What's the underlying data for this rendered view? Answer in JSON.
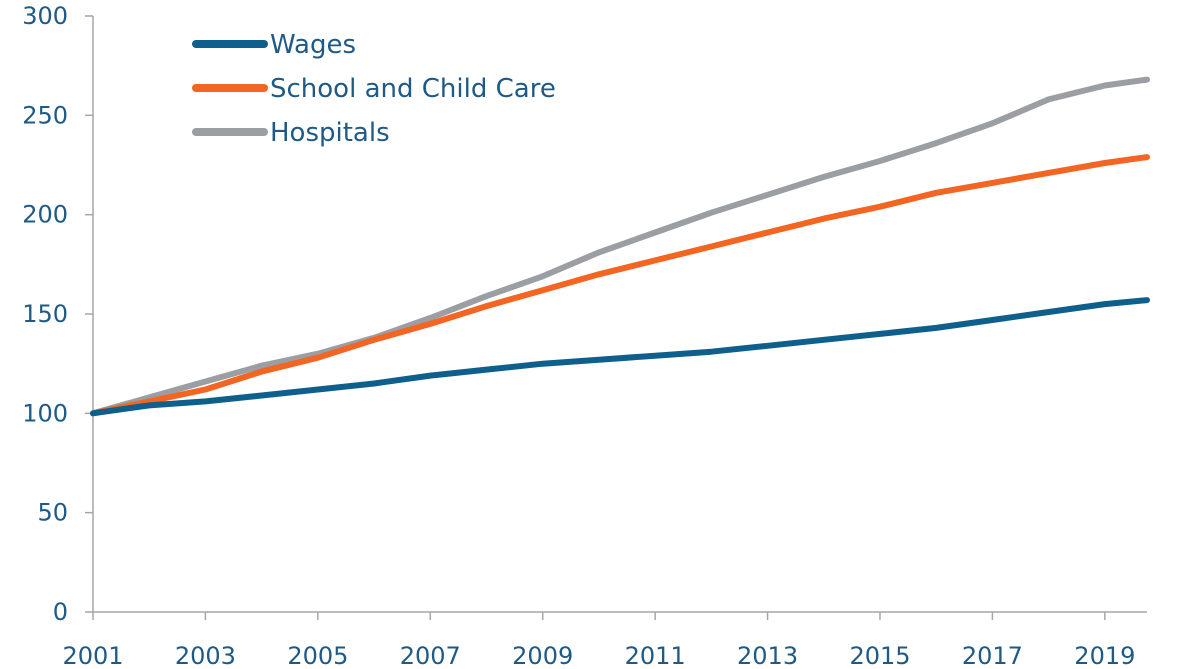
{
  "chart_data": {
    "type": "line",
    "title": "",
    "xlabel": "",
    "ylabel": "",
    "ylim": [
      0,
      300
    ],
    "xlim": [
      2001,
      2019.75
    ],
    "y_ticks": [
      0,
      50,
      100,
      150,
      200,
      250,
      300
    ],
    "x_ticks": [
      2001,
      2003,
      2005,
      2007,
      2009,
      2011,
      2013,
      2015,
      2017,
      2019
    ],
    "grid": false,
    "legend_position": "top-left",
    "series": [
      {
        "name": "Wages",
        "color": "#0f5f8c",
        "x": [
          2001,
          2002,
          2003,
          2004,
          2005,
          2006,
          2007,
          2008,
          2009,
          2010,
          2011,
          2012,
          2013,
          2014,
          2015,
          2016,
          2017,
          2018,
          2019,
          2019.75
        ],
        "y": [
          100,
          104,
          106,
          109,
          112,
          115,
          119,
          122,
          125,
          127,
          129,
          131,
          134,
          137,
          140,
          143,
          147,
          151,
          155,
          157
        ]
      },
      {
        "name": "School and Child Care",
        "color": "#f26522",
        "x": [
          2001,
          2002,
          2003,
          2004,
          2005,
          2006,
          2007,
          2008,
          2009,
          2010,
          2011,
          2012,
          2013,
          2014,
          2015,
          2016,
          2017,
          2018,
          2019,
          2019.75
        ],
        "y": [
          100,
          106,
          112,
          121,
          128,
          137,
          145,
          154,
          162,
          170,
          177,
          184,
          191,
          198,
          204,
          211,
          216,
          221,
          226,
          229
        ]
      },
      {
        "name": "Hospitals",
        "color": "#9b9ea3",
        "x": [
          2001,
          2002,
          2003,
          2004,
          2005,
          2006,
          2007,
          2008,
          2009,
          2010,
          2011,
          2012,
          2013,
          2014,
          2015,
          2016,
          2017,
          2018,
          2019,
          2019.75
        ],
        "y": [
          100,
          108,
          116,
          124,
          130,
          138,
          148,
          159,
          169,
          181,
          191,
          201,
          210,
          219,
          227,
          236,
          246,
          258,
          265,
          268
        ]
      }
    ]
  }
}
